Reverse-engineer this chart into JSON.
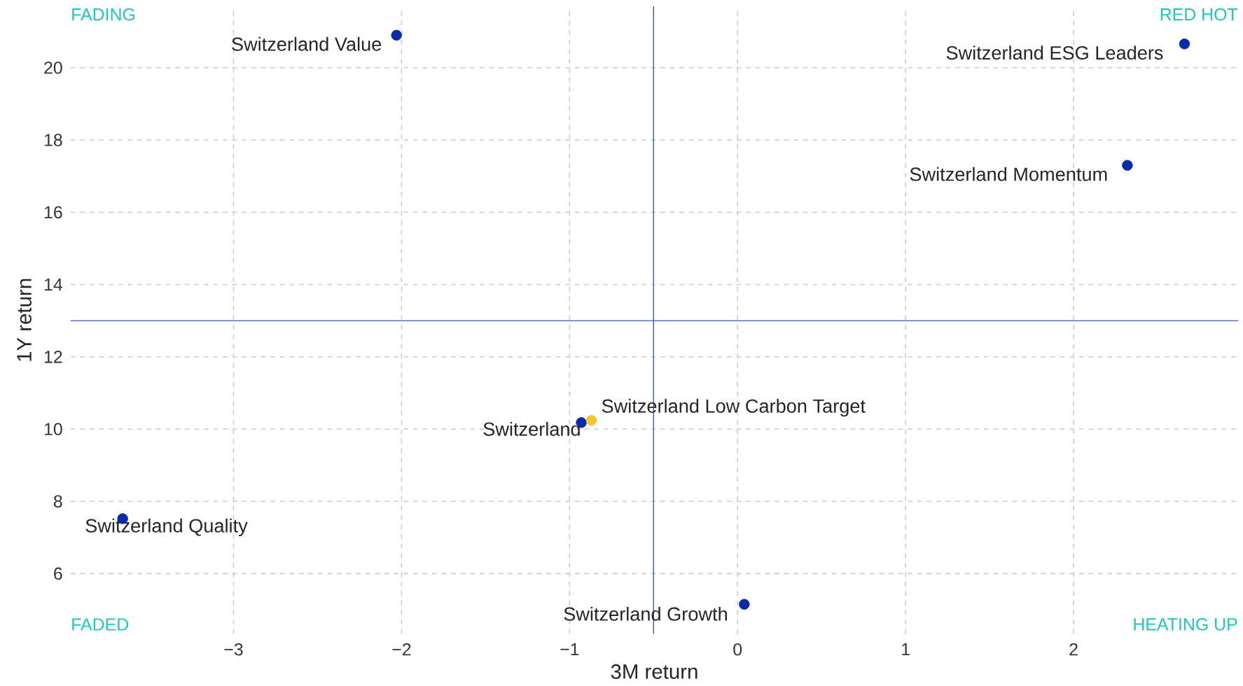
{
  "chart_data": {
    "type": "scatter",
    "xlabel": "3M return",
    "ylabel": "1Y return",
    "xlim": [
      -3.97,
      2.98
    ],
    "ylim": [
      4.33,
      21.7
    ],
    "xticks": [
      {
        "value": -3,
        "label": "−3"
      },
      {
        "value": -2,
        "label": "−2"
      },
      {
        "value": -1,
        "label": "−1"
      },
      0,
      1,
      2
    ],
    "yticks": [
      6,
      8,
      10,
      12,
      14,
      16,
      18,
      20
    ],
    "grid": true,
    "legend": false,
    "series": [
      {
        "name": "Switzerland Value",
        "color": "#0a2aa8",
        "x": [
          -2.03
        ],
        "values": [
          20.9
        ]
      },
      {
        "name": "Switzerland ESG Leaders",
        "color": "#0a2aa8",
        "x": [
          2.66
        ],
        "values": [
          20.66
        ]
      },
      {
        "name": "Switzerland Momentum",
        "color": "#0a2aa8",
        "x": [
          2.32
        ],
        "values": [
          17.3
        ]
      },
      {
        "name": "Switzerland",
        "color": "#0a2aa8",
        "x": [
          -0.93
        ],
        "values": [
          10.18
        ]
      },
      {
        "name": "Switzerland Low Carbon Target",
        "color": "#f6c333",
        "x": [
          -0.87
        ],
        "values": [
          10.24
        ]
      },
      {
        "name": "Switzerland Quality",
        "color": "#0a2aa8",
        "x": [
          -3.66
        ],
        "values": [
          7.52
        ]
      },
      {
        "name": "Switzerland Growth",
        "color": "#0a2aa8",
        "x": [
          0.04
        ],
        "values": [
          5.15
        ]
      }
    ],
    "ref_lines": [
      {
        "axis": "x",
        "value": -0.5,
        "color": "#3f51b5"
      },
      {
        "axis": "y",
        "value": 13,
        "color": "#3f51b5"
      }
    ],
    "annotations": [
      "FADING",
      "RED HOT",
      "FADED",
      "HEATING UP"
    ]
  }
}
